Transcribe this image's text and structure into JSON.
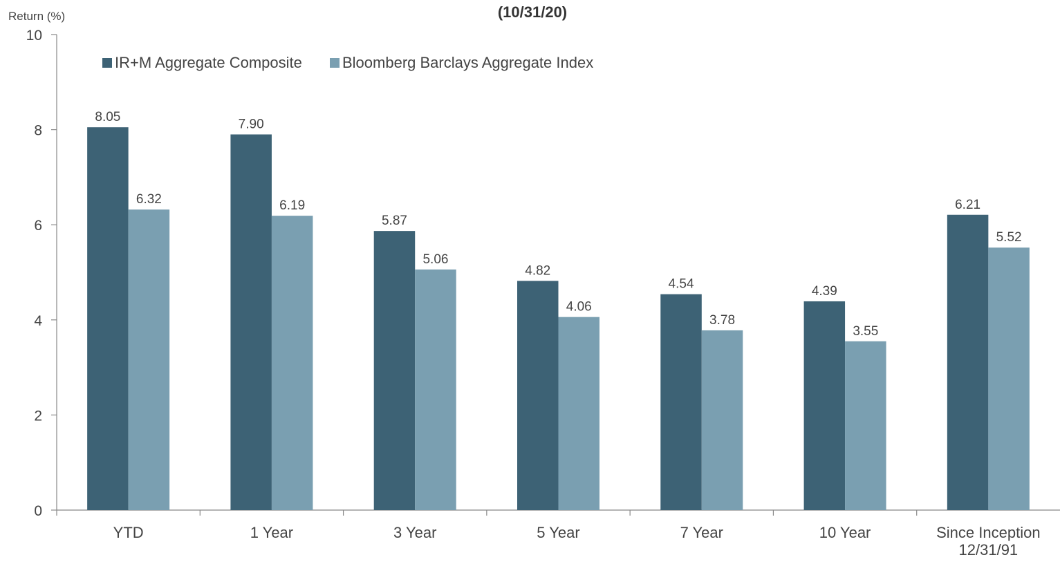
{
  "chart_data": {
    "type": "bar",
    "title": "(10/31/20)",
    "ylabel": "Return (%)",
    "xlabel": "",
    "ylim": [
      0,
      10
    ],
    "yticks": [
      0,
      2,
      4,
      6,
      8,
      10
    ],
    "grid": false,
    "legend_position": "top-left",
    "categories": [
      [
        "YTD"
      ],
      [
        "1 Year"
      ],
      [
        "3 Year"
      ],
      [
        "5 Year"
      ],
      [
        "7 Year"
      ],
      [
        "10 Year"
      ],
      [
        "Since Inception",
        "12/31/91"
      ]
    ],
    "series": [
      {
        "name": "IR+M Aggregate Composite",
        "color": "#3d6275",
        "values": [
          8.05,
          7.9,
          5.87,
          4.82,
          4.54,
          4.39,
          6.21
        ],
        "labels": [
          "8.05",
          "7.90",
          "5.87",
          "4.82",
          "4.54",
          "4.39",
          "6.21"
        ]
      },
      {
        "name": "Bloomberg Barclays Aggregate Index",
        "color": "#7a9fb1",
        "values": [
          6.32,
          6.19,
          5.06,
          4.06,
          3.78,
          3.55,
          5.52
        ],
        "labels": [
          "6.32",
          "6.19",
          "5.06",
          "4.06",
          "3.78",
          "3.55",
          "5.52"
        ]
      }
    ]
  }
}
